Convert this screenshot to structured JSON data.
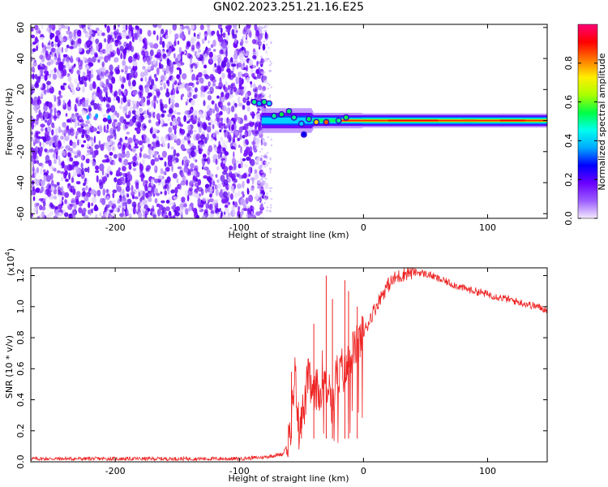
{
  "title": "GN02.2023.251.21.16.E25",
  "chart_data": [
    {
      "type": "heatmap",
      "xlabel": "Height of straight line (km)",
      "ylabel": "Frequency (Hz)",
      "xlim": [
        -268,
        148
      ],
      "ylim": [
        -63,
        62
      ],
      "xticks": [
        -200,
        -100,
        0,
        100
      ],
      "yticks": [
        -60,
        -40,
        -20,
        0,
        20,
        40,
        60
      ],
      "colorbar": {
        "label": "Normalized spectral amplitude",
        "range": [
          0.0,
          1.0
        ],
        "ticks": [
          "0.0",
          "0.2",
          "0.4",
          "0.6",
          "0.8"
        ],
        "colors": [
          "#f4eaff",
          "#9b5cff",
          "#6a00ff",
          "#0000ff",
          "#00aaff",
          "#00ffee",
          "#00ff44",
          "#aaff00",
          "#ffee00",
          "#ff7700",
          "#ff0000",
          "#ff0077"
        ]
      },
      "features": {
        "noise_region_x": [
          -268,
          -82
        ],
        "noise_frequency_range": [
          -63,
          62
        ],
        "signal_band_x": [
          -82,
          148
        ],
        "signal_band_center_hz": 0,
        "signal_band_halfwidth_hz": [
          10,
          3
        ]
      }
    },
    {
      "type": "line",
      "xlabel": "Height of straight line (km)",
      "ylabel": "SNR (10 * v/v)",
      "yscale_label": "(x10",
      "yscale_exp": "4",
      "yscale_close": ")",
      "xlim": [
        -268,
        148
      ],
      "ylim": [
        0,
        1.25
      ],
      "xticks": [
        -200,
        -100,
        0,
        100
      ],
      "yticks": [
        "0.0",
        "0.2",
        "0.4",
        "0.6",
        "0.8",
        "1.0",
        "1.2"
      ],
      "line_color": "#ee2222",
      "series": [
        {
          "x": [
            -268,
            -200,
            -150,
            -100,
            -80,
            -65,
            -60,
            -58,
            -55,
            -52,
            -50,
            -48,
            -45,
            -43,
            -40,
            -38,
            -35,
            -33,
            -30,
            -28,
            -25,
            -22,
            -20,
            -18,
            -15,
            -12,
            -10,
            -8,
            -5,
            -2,
            0,
            5,
            10,
            15,
            20,
            25,
            30,
            35,
            40,
            45,
            50,
            55,
            60,
            70,
            80,
            90,
            100,
            110,
            120,
            130,
            140,
            148
          ],
          "y": [
            0.02,
            0.02,
            0.02,
            0.02,
            0.03,
            0.05,
            0.15,
            0.3,
            0.58,
            0.2,
            0.35,
            0.3,
            0.55,
            0.5,
            0.4,
            0.48,
            0.4,
            0.6,
            0.45,
            0.55,
            0.3,
            0.6,
            0.5,
            0.62,
            0.55,
            0.65,
            0.7,
            0.72,
            0.75,
            0.8,
            0.82,
            0.92,
            1.0,
            1.08,
            1.14,
            1.18,
            1.2,
            1.22,
            1.22,
            1.22,
            1.21,
            1.2,
            1.18,
            1.15,
            1.12,
            1.1,
            1.08,
            1.06,
            1.04,
            1.02,
            1.0,
            0.98
          ]
        }
      ],
      "spikes": [
        {
          "x": -58,
          "y": 0.58
        },
        {
          "x": -50,
          "y": 0.35
        },
        {
          "x": -40,
          "y": 0.89
        },
        {
          "x": -30,
          "y": 1.2
        },
        {
          "x": -25,
          "y": 1.05
        },
        {
          "x": -15,
          "y": 1.17
        },
        {
          "x": -12,
          "y": 1.1
        },
        {
          "x": -5,
          "y": 1.0
        }
      ]
    }
  ]
}
